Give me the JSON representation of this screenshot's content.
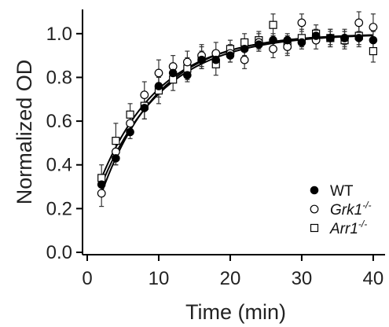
{
  "chart_data": {
    "type": "scatter",
    "title": "",
    "xlabel": "Time (min)",
    "ylabel": "Normalized OD",
    "xlim": [
      0,
      41
    ],
    "ylim": [
      0,
      1.1
    ],
    "xticks": [
      0,
      10,
      20,
      30,
      40
    ],
    "yticks": [
      0.0,
      0.2,
      0.4,
      0.6,
      0.8,
      1.0
    ],
    "xtick_labels": [
      "0",
      "10",
      "20",
      "30",
      "40"
    ],
    "ytick_labels": [
      "0.0",
      "0.2",
      "0.4",
      "0.6",
      "0.8",
      "1.0"
    ],
    "grid": false,
    "legend_position": "bottom-right",
    "series": [
      {
        "name": "WT",
        "marker": "filled-circle",
        "color": "#000000",
        "x": [
          2,
          4,
          6,
          8,
          10,
          12,
          14,
          16,
          18,
          20,
          22,
          24,
          26,
          28,
          30,
          32,
          34,
          36,
          38,
          40
        ],
        "y": [
          0.31,
          0.43,
          0.55,
          0.66,
          0.76,
          0.82,
          0.81,
          0.88,
          0.88,
          0.9,
          0.93,
          0.95,
          0.97,
          0.97,
          0.96,
          0.99,
          0.98,
          0.98,
          0.98,
          0.97
        ],
        "error": [
          0.03,
          0.03,
          0.03,
          0.05,
          0.05,
          0.04,
          0.03,
          0.04,
          0.03,
          0.03,
          0.03,
          0.03,
          0.03,
          0.03,
          0.03,
          0.03,
          0.03,
          0.03,
          0.03,
          0.04
        ],
        "fit_rate": 0.115
      },
      {
        "name": "Grk1",
        "name_superscript": "-/-",
        "marker": "open-circle",
        "color": "#000000",
        "x": [
          2,
          4,
          6,
          8,
          10,
          12,
          14,
          16,
          18,
          20,
          22,
          24,
          26,
          28,
          30,
          32,
          34,
          36,
          38,
          40
        ],
        "y": [
          0.27,
          0.46,
          0.59,
          0.72,
          0.82,
          0.85,
          0.87,
          0.9,
          0.91,
          0.91,
          0.88,
          0.96,
          0.93,
          0.94,
          1.05,
          0.97,
          0.98,
          0.98,
          1.05,
          1.03
        ],
        "error": [
          0.06,
          0.06,
          0.05,
          0.06,
          0.06,
          0.05,
          0.05,
          0.05,
          0.05,
          0.04,
          0.04,
          0.04,
          0.04,
          0.04,
          0.04,
          0.04,
          0.04,
          0.04,
          0.05,
          0.06
        ],
        "fit_rate": 0.125
      },
      {
        "name": "Arr1",
        "name_superscript": "-/-",
        "marker": "open-square",
        "color": "#000000",
        "x": [
          2,
          4,
          6,
          8,
          10,
          12,
          14,
          16,
          18,
          20,
          22,
          24,
          26,
          28,
          30,
          32,
          34,
          36,
          38,
          40
        ],
        "y": [
          0.34,
          0.51,
          0.63,
          0.67,
          0.74,
          0.79,
          0.84,
          0.89,
          0.86,
          0.93,
          0.96,
          0.97,
          1.04,
          0.95,
          0.98,
          1.0,
          0.98,
          0.97,
          0.99,
          0.92
        ],
        "error": [
          0.06,
          0.08,
          0.05,
          0.06,
          0.06,
          0.05,
          0.05,
          0.05,
          0.05,
          0.04,
          0.04,
          0.04,
          0.05,
          0.04,
          0.04,
          0.04,
          0.04,
          0.04,
          0.05,
          0.05
        ],
        "fit_rate": 0.12
      }
    ]
  }
}
